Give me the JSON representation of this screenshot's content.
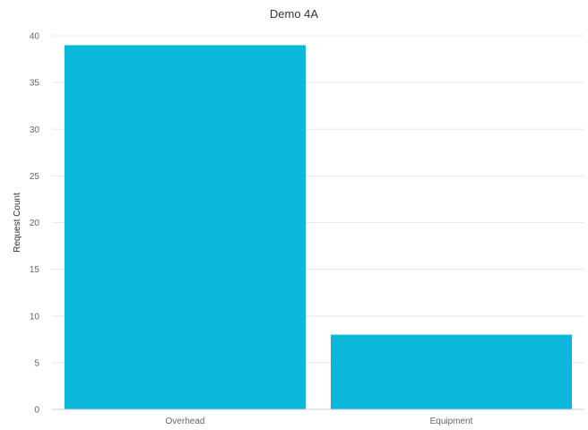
{
  "chart_data": {
    "type": "bar",
    "title": "Demo 4A",
    "xlabel": "",
    "ylabel": "Request Count",
    "categories": [
      "Overhead",
      "Equipment"
    ],
    "values": [
      39,
      8
    ],
    "ylim": [
      0,
      40
    ],
    "yticks": [
      0,
      5,
      10,
      15,
      20,
      25,
      30,
      35,
      40
    ],
    "grid": true,
    "legend": "none",
    "bar_color": "#0BB8DA",
    "grid_color": "#e8e8e8"
  }
}
